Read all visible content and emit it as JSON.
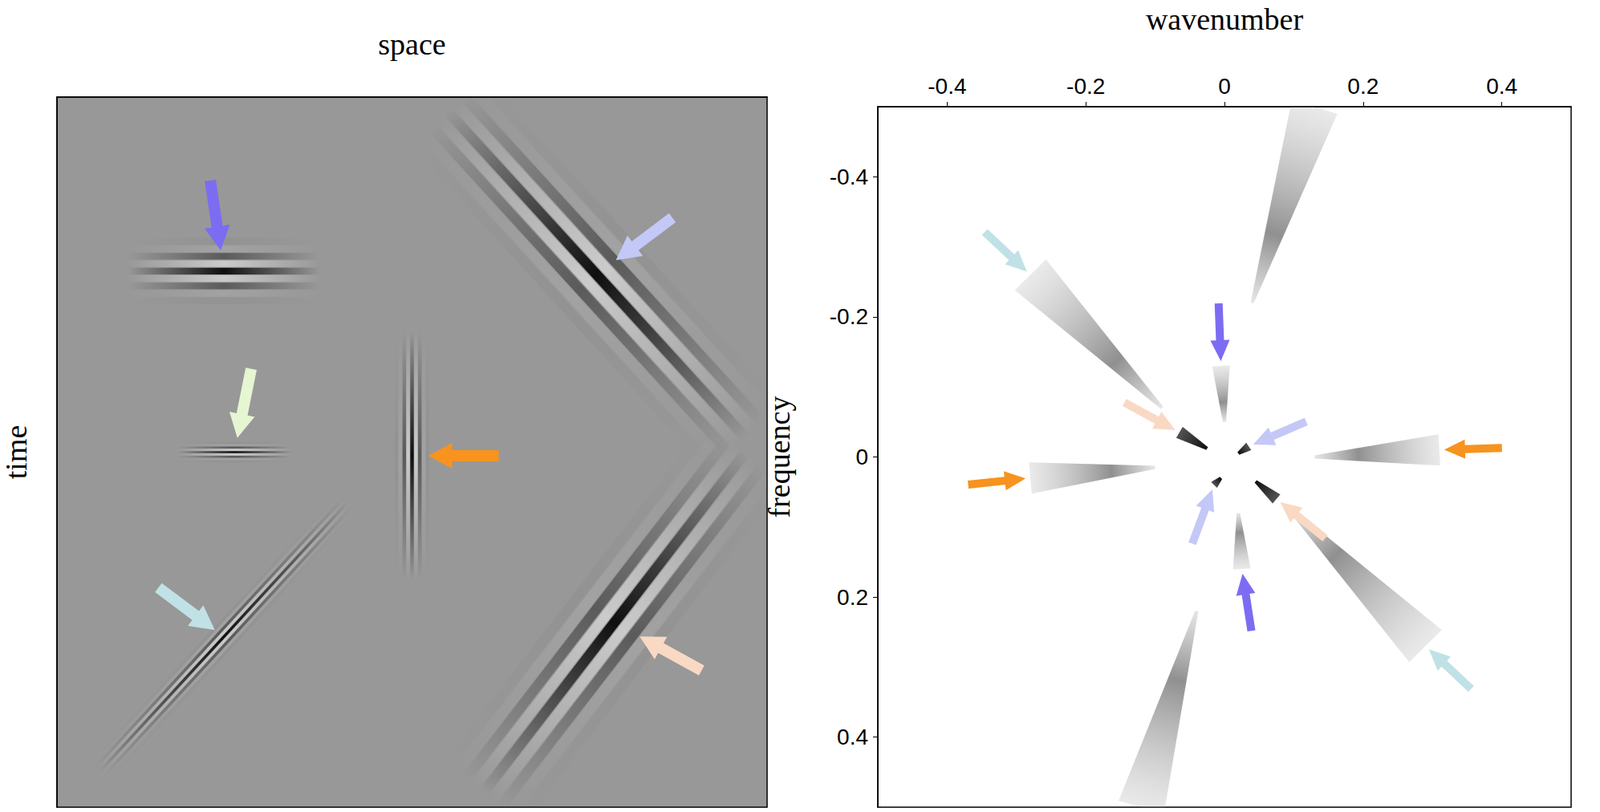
{
  "chart_data": [
    {
      "type": "image",
      "x_label": "space",
      "y_label": "time",
      "xlim": [
        0,
        1
      ],
      "ylim": [
        0,
        1
      ],
      "tick_labels": false,
      "events": [
        {
          "color": "#7c6cf2",
          "x": [
            0.1,
            0.37
          ],
          "y": [
            0.245,
            0.245
          ]
        },
        {
          "color": "#c3c8f7",
          "x": [
            0.55,
            0.97
          ],
          "y": [
            0.02,
            0.48
          ]
        },
        {
          "color": "#e6f5d2",
          "x": [
            0.17,
            0.33
          ],
          "y": [
            0.5,
            0.5
          ]
        },
        {
          "color": "#f7931e",
          "x": [
            0.5,
            0.5
          ],
          "y": [
            0.33,
            0.68
          ]
        },
        {
          "color": "#c0e1e6",
          "x": [
            0.06,
            0.41
          ],
          "y": [
            0.95,
            0.57
          ]
        },
        {
          "color": "#f9d9c4",
          "x": [
            0.97,
            0.6
          ],
          "y": [
            0.5,
            0.98
          ]
        }
      ]
    },
    {
      "type": "spectrum",
      "x_label": "wavenumber",
      "y_label": "frequency",
      "xlim": [
        -0.5,
        0.5
      ],
      "ylim": [
        -0.5,
        0.5
      ],
      "xticks": [
        -0.4,
        -0.2,
        0,
        0.2,
        0.4
      ],
      "yticks": [
        -0.4,
        -0.2,
        0,
        0.2,
        0.4
      ],
      "wedges": [
        {
          "color": "#7c6cf2",
          "x": [
            -0.005,
            0.0
          ],
          "y": [
            -0.13,
            -0.05
          ]
        },
        {
          "color": "#7c6cf2",
          "x": [
            0.025,
            0.02
          ],
          "y": [
            0.16,
            0.08
          ]
        },
        {
          "color": "#c3c8f7",
          "x": [
            0.035,
            0.02
          ],
          "y": [
            -0.015,
            -0.005
          ]
        },
        {
          "color": "#c3c8f7",
          "x": [
            -0.015,
            -0.005
          ],
          "y": [
            0.04,
            0.03
          ]
        },
        {
          "color": "#f9d9c4",
          "x": [
            -0.065,
            -0.025
          ],
          "y": [
            -0.035,
            -0.012
          ]
        },
        {
          "color": "#f9d9c4",
          "x": [
            0.075,
            0.045
          ],
          "y": [
            0.06,
            0.035
          ]
        },
        {
          "color": "#c0e1e6",
          "x": [
            -0.28,
            -0.09
          ],
          "y": [
            -0.26,
            -0.07
          ]
        },
        {
          "color": "#c0e1e6",
          "x": [
            0.29,
            0.09
          ],
          "y": [
            0.27,
            0.07
          ]
        },
        {
          "color": "#f7931e",
          "x": [
            -0.28,
            -0.1
          ],
          "y": [
            0.03,
            0.015
          ]
        },
        {
          "color": "#f7931e",
          "x": [
            0.31,
            0.13
          ],
          "y": [
            -0.01,
            0.0
          ]
        },
        {
          "color": "#e6f5d2",
          "x": [
            0.13,
            0.04
          ],
          "y": [
            -0.5,
            -0.22
          ]
        },
        {
          "color": "#e6f5d2",
          "x": [
            -0.12,
            -0.04
          ],
          "y": [
            0.5,
            0.22
          ]
        }
      ]
    }
  ]
}
